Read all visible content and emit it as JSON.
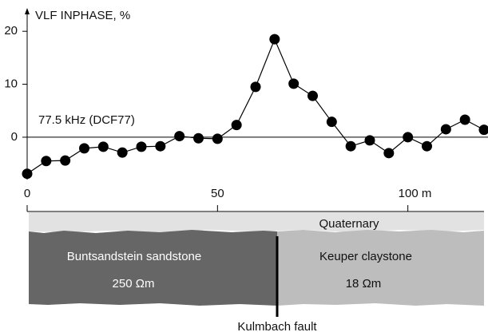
{
  "chart_data": {
    "type": "line",
    "y_label": "VLF INPHASE, %",
    "annotation": "77.5 kHz (DCF77)",
    "x": [
      0,
      5,
      10,
      15,
      20,
      25,
      30,
      35,
      40,
      45,
      50,
      55,
      60,
      65,
      70,
      75,
      80,
      85,
      90,
      95,
      100,
      105,
      110,
      115,
      120
    ],
    "values": [
      -6.9,
      -4.5,
      -4.4,
      -2.1,
      -1.8,
      -2.9,
      -1.8,
      -1.7,
      0.2,
      -0.2,
      -0.3,
      2.3,
      9.5,
      18.5,
      10.1,
      7.8,
      2.9,
      -1.7,
      -0.6,
      -3,
      0,
      -1.7,
      1.5,
      3.3,
      1.4
    ],
    "color": "#000000",
    "xlim": [
      0,
      120
    ],
    "xticks": [
      0,
      50,
      {
        "value": 100,
        "label": "100 m"
      }
    ],
    "ylim": [
      -8,
      24.4
    ],
    "yticks": [
      0,
      10,
      20
    ]
  },
  "section": {
    "quaternary": "Quaternary",
    "left_unit": "Buntsandstein sandstone",
    "left_resistivity": "250 Ωm",
    "right_unit": "Keuper claystone",
    "right_resistivity": "18 Ωm",
    "fault": "Kulmbach fault"
  }
}
